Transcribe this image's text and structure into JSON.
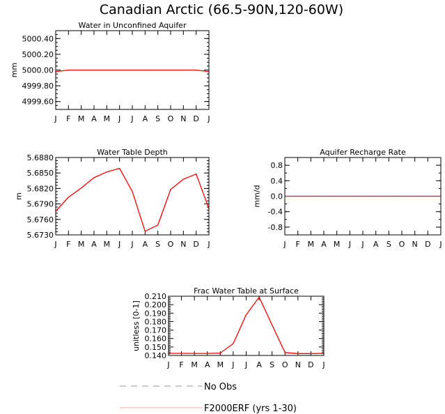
{
  "title": "Canadian Arctic (66.5-90N,120-60W)",
  "colors": {
    "model": "#ff0000",
    "obs": "#999999",
    "axis": "#000000",
    "legend_model": "#ffaaaa"
  },
  "legend": {
    "obs_label": "No Obs",
    "model_label": "F2000ERF (yrs 1-30)"
  },
  "chart_data": [
    {
      "id": "aquifer",
      "type": "line",
      "title": "Water in Unconfined Aquifer",
      "xlabel": "",
      "ylabel": "mm",
      "categories": [
        "J",
        "F",
        "M",
        "A",
        "M",
        "J",
        "J",
        "A",
        "S",
        "O",
        "N",
        "D",
        "J"
      ],
      "ylim": [
        4999.5,
        5000.5
      ],
      "yticks": [
        4999.6,
        4999.8,
        5000.0,
        5000.2,
        5000.4
      ],
      "ytick_labels": [
        "4999.60",
        "4999.80",
        "5000.00",
        "5000.20",
        "5000.40"
      ],
      "minor_step": 0.05,
      "series": [
        {
          "name": "F2000ERF (yrs 1-30)",
          "values": [
            4999.98,
            5000.0,
            5000.0,
            5000.0,
            5000.0,
            5000.0,
            5000.0,
            5000.0,
            5000.0,
            5000.0,
            5000.0,
            5000.0,
            4999.98
          ]
        }
      ]
    },
    {
      "id": "wtd",
      "type": "line",
      "title": "Water Table Depth",
      "xlabel": "",
      "ylabel": "m",
      "categories": [
        "J",
        "F",
        "M",
        "A",
        "M",
        "J",
        "J",
        "A",
        "S",
        "O",
        "N",
        "D",
        "J"
      ],
      "ylim": [
        5.673,
        5.688
      ],
      "yticks": [
        5.673,
        5.676,
        5.679,
        5.682,
        5.685,
        5.688
      ],
      "ytick_labels": [
        "5.6730",
        "5.6760",
        "5.6790",
        "5.6820",
        "5.6850",
        "5.6880"
      ],
      "minor_step": 0.0006,
      "series": [
        {
          "name": "F2000ERF (yrs 1-30)",
          "values": [
            5.6776,
            5.6803,
            5.6821,
            5.6841,
            5.6852,
            5.6859,
            5.6814,
            5.6737,
            5.6749,
            5.6818,
            5.6838,
            5.6848,
            5.6781
          ]
        }
      ]
    },
    {
      "id": "recharge",
      "type": "line",
      "title": "Aquifer Recharge Rate",
      "xlabel": "",
      "ylabel": "mm/d",
      "categories": [
        "J",
        "F",
        "M",
        "A",
        "M",
        "J",
        "J",
        "A",
        "S",
        "O",
        "N",
        "D",
        "J"
      ],
      "ylim": [
        -1.0,
        1.0
      ],
      "yticks": [
        -0.8,
        -0.4,
        0.0,
        0.4,
        0.8
      ],
      "ytick_labels": [
        "-0.8",
        "-0.4",
        "0.0",
        "0.4",
        "0.8"
      ],
      "minor_step": 0.2,
      "series": [
        {
          "name": "F2000ERF (yrs 1-30)",
          "values": [
            0,
            0,
            0,
            0,
            0,
            0,
            0,
            0,
            0,
            0,
            0,
            0,
            0
          ]
        }
      ]
    },
    {
      "id": "fwt",
      "type": "line",
      "title": "Frac Water Table at Surface",
      "xlabel": "",
      "ylabel": "unitless [0-1]",
      "categories": [
        "J",
        "F",
        "M",
        "A",
        "M",
        "J",
        "J",
        "A",
        "S",
        "O",
        "N",
        "D",
        "J"
      ],
      "ylim": [
        0.14,
        0.21
      ],
      "yticks": [
        0.14,
        0.15,
        0.16,
        0.17,
        0.18,
        0.19,
        0.2,
        0.21
      ],
      "ytick_labels": [
        "0.140",
        "0.150",
        "0.160",
        "0.170",
        "0.180",
        "0.190",
        "0.200",
        "0.210"
      ],
      "minor_step": 0.002,
      "series": [
        {
          "name": "F2000ERF (yrs 1-30)",
          "values": [
            0.1425,
            0.1425,
            0.1424,
            0.1424,
            0.1428,
            0.154,
            0.188,
            0.209,
            0.176,
            0.1435,
            0.1422,
            0.1422,
            0.1425
          ]
        }
      ]
    }
  ]
}
